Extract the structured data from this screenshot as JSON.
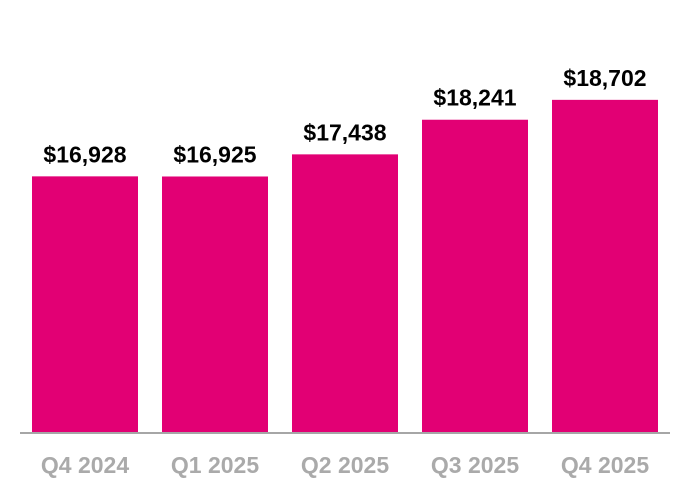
{
  "chart_data": {
    "type": "bar",
    "categories": [
      "Q4 2024",
      "Q1 2025",
      "Q2 2025",
      "Q3 2025",
      "Q4 2025"
    ],
    "values": [
      16928,
      16925,
      17438,
      18241,
      18702
    ],
    "data_labels": [
      "$16,928",
      "$16,925",
      "$17,438",
      "$18,241",
      "$18,702"
    ],
    "title": "",
    "xlabel": "",
    "ylabel": "",
    "ylim": [
      11000,
      19000
    ],
    "grid": false,
    "legend": "none",
    "colors": {
      "bar": "#E20074",
      "axis": "#a6a6a6",
      "category_label": "#aaaaaa",
      "value_label": "#000000"
    }
  }
}
